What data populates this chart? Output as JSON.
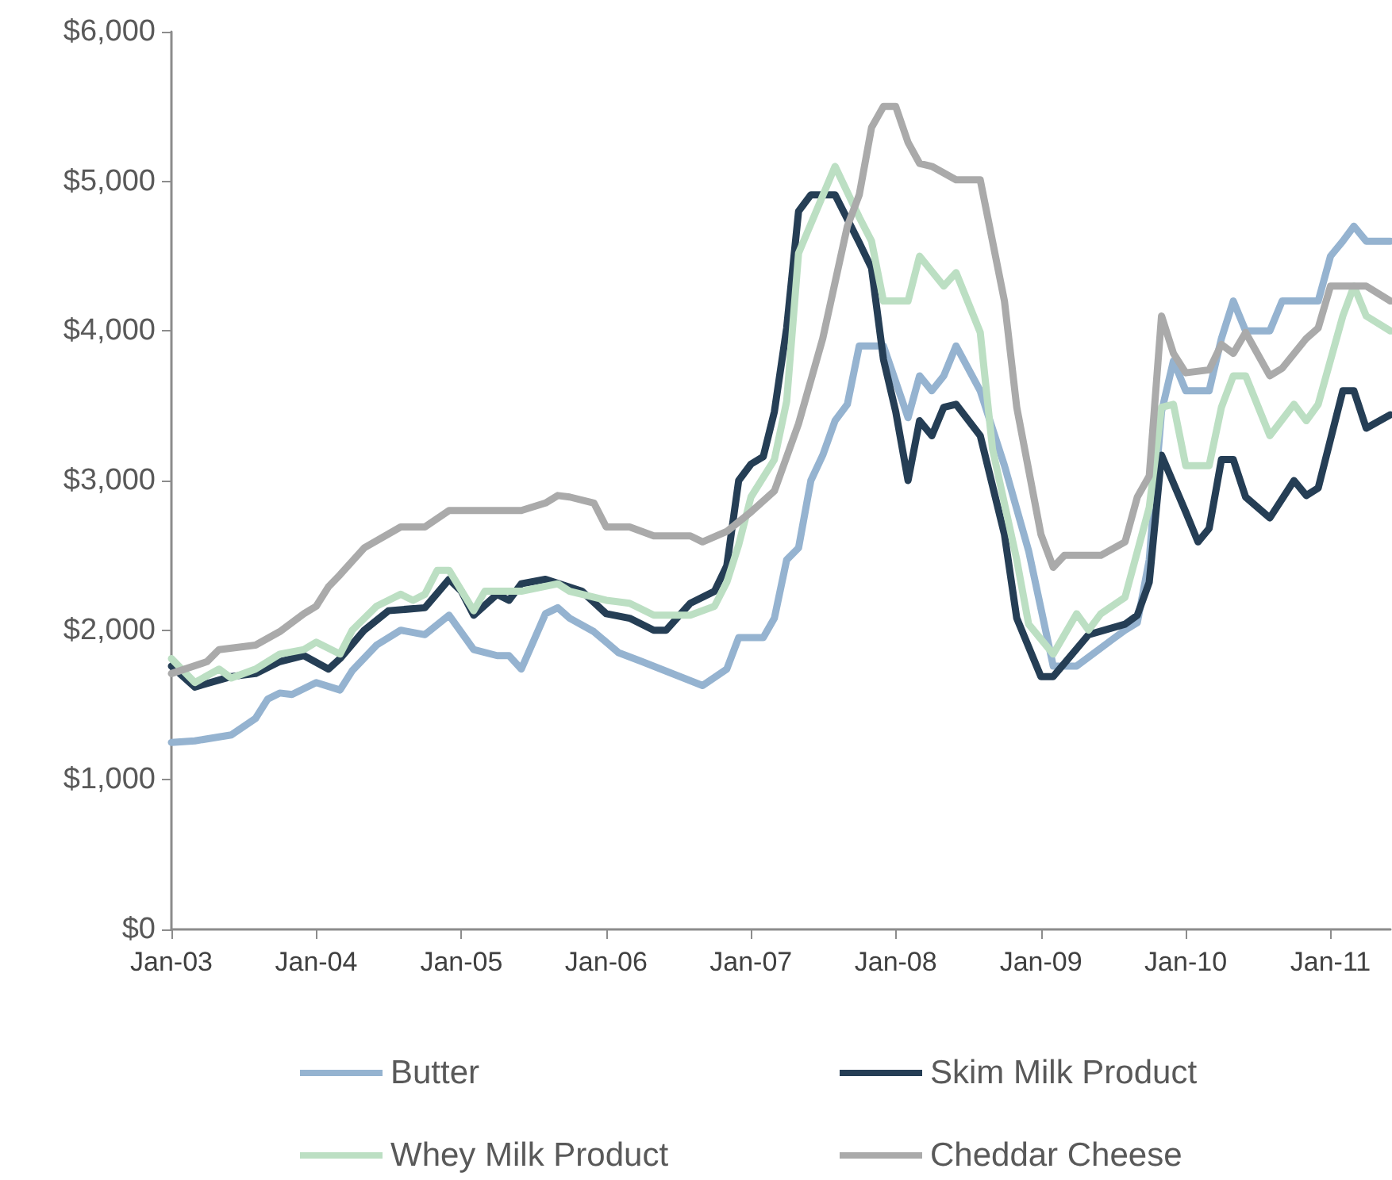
{
  "chart_data": {
    "type": "line",
    "xlim": [
      "2003-01",
      "2011-06"
    ],
    "xticks": [
      {
        "value": "2003-01",
        "label": "Jan-03"
      },
      {
        "value": "2004-01",
        "label": "Jan-04"
      },
      {
        "value": "2005-01",
        "label": "Jan-05"
      },
      {
        "value": "2006-01",
        "label": "Jan-06"
      },
      {
        "value": "2007-01",
        "label": "Jan-07"
      },
      {
        "value": "2008-01",
        "label": "Jan-08"
      },
      {
        "value": "2009-01",
        "label": "Jan-09"
      },
      {
        "value": "2010-01",
        "label": "Jan-10"
      },
      {
        "value": "2011-01",
        "label": "Jan-11"
      }
    ],
    "ylim": [
      0,
      6000
    ],
    "yticks": [
      {
        "value": 0,
        "label": "$0"
      },
      {
        "value": 1000,
        "label": "$1,000"
      },
      {
        "value": 2000,
        "label": "$2,000"
      },
      {
        "value": 3000,
        "label": "$3,000"
      },
      {
        "value": 4000,
        "label": "$4,000"
      },
      {
        "value": 5000,
        "label": "$5,000"
      },
      {
        "value": 6000,
        "label": "$6,000"
      }
    ],
    "grid": false,
    "legend": "bottom",
    "marker": "none",
    "line_style": "solid",
    "series": [
      {
        "name": "Butter",
        "color": "#95b3d0",
        "x": [
          "2003-01",
          "2003-03",
          "2003-06",
          "2003-08",
          "2003-09",
          "2003-10",
          "2003-11",
          "2004-01",
          "2004-03",
          "2004-04",
          "2004-06",
          "2004-08",
          "2004-10",
          "2004-12",
          "2005-02",
          "2005-04",
          "2005-05",
          "2005-06",
          "2005-08",
          "2005-09",
          "2005-10",
          "2005-12",
          "2006-02",
          "2006-04",
          "2006-09",
          "2006-11",
          "2006-12",
          "2007-02",
          "2007-03",
          "2007-04",
          "2007-05",
          "2007-06",
          "2007-07",
          "2007-08",
          "2007-09",
          "2007-10",
          "2007-12",
          "2008-02",
          "2008-03",
          "2008-04",
          "2008-05",
          "2008-06",
          "2008-08",
          "2008-10",
          "2008-12",
          "2009-02",
          "2009-04",
          "2009-07",
          "2009-08",
          "2009-09",
          "2009-10",
          "2009-11",
          "2009-12",
          "2010-01",
          "2010-03",
          "2010-04",
          "2010-05",
          "2010-06",
          "2010-08",
          "2010-09",
          "2010-12",
          "2011-01",
          "2011-02",
          "2011-03",
          "2011-04",
          "2011-06"
        ],
        "values": [
          1250,
          1260,
          1300,
          1410,
          1540,
          1580,
          1570,
          1650,
          1600,
          1730,
          1900,
          2000,
          1970,
          2100,
          1870,
          1830,
          1830,
          1740,
          2110,
          2150,
          2080,
          1990,
          1850,
          1790,
          1630,
          1740,
          1950,
          1950,
          2080,
          2470,
          2550,
          3000,
          3170,
          3400,
          3510,
          3900,
          3900,
          3420,
          3700,
          3600,
          3700,
          3900,
          3600,
          3100,
          2530,
          1760,
          1760,
          1940,
          2000,
          2050,
          2470,
          3460,
          3800,
          3600,
          3600,
          3950,
          4200,
          4000,
          4000,
          4200,
          4200,
          4500,
          4600,
          4700,
          4600,
          4600
        ]
      },
      {
        "name": "Skim Milk Product",
        "color": "#253e55",
        "x": [
          "2003-01",
          "2003-03",
          "2003-06",
          "2003-08",
          "2003-10",
          "2003-12",
          "2004-02",
          "2004-03",
          "2004-05",
          "2004-07",
          "2004-10",
          "2004-12",
          "2005-01",
          "2005-02",
          "2005-04",
          "2005-05",
          "2005-06",
          "2005-08",
          "2005-11",
          "2006-01",
          "2006-03",
          "2006-05",
          "2006-06",
          "2006-08",
          "2006-10",
          "2006-11",
          "2006-12",
          "2007-01",
          "2007-02",
          "2007-03",
          "2007-04",
          "2007-05",
          "2007-06",
          "2007-08",
          "2007-10",
          "2007-11",
          "2007-12",
          "2008-01",
          "2008-02",
          "2008-03",
          "2008-04",
          "2008-05",
          "2008-06",
          "2008-08",
          "2008-10",
          "2008-11",
          "2009-01",
          "2009-02",
          "2009-05",
          "2009-08",
          "2009-09",
          "2009-10",
          "2009-11",
          "2010-01",
          "2010-02",
          "2010-03",
          "2010-04",
          "2010-05",
          "2010-06",
          "2010-08",
          "2010-10",
          "2010-11",
          "2010-12",
          "2011-02",
          "2011-03",
          "2011-04",
          "2011-06"
        ],
        "values": [
          1760,
          1620,
          1690,
          1710,
          1790,
          1830,
          1740,
          1810,
          2000,
          2130,
          2150,
          2340,
          2260,
          2100,
          2240,
          2200,
          2310,
          2340,
          2260,
          2110,
          2080,
          2000,
          2000,
          2180,
          2260,
          2430,
          3000,
          3110,
          3160,
          3460,
          4020,
          4800,
          4910,
          4910,
          4590,
          4420,
          3810,
          3460,
          3000,
          3400,
          3300,
          3490,
          3510,
          3300,
          2640,
          2080,
          1690,
          1690,
          1970,
          2040,
          2100,
          2320,
          3170,
          2790,
          2590,
          2680,
          3140,
          3140,
          2890,
          2750,
          3000,
          2900,
          2950,
          3600,
          3600,
          3350,
          3440
        ]
      },
      {
        "name": "Whey Milk Product",
        "color": "#bcdfc3",
        "x": [
          "2003-01",
          "2003-03",
          "2003-05",
          "2003-06",
          "2003-08",
          "2003-10",
          "2003-12",
          "2004-01",
          "2004-03",
          "2004-04",
          "2004-06",
          "2004-08",
          "2004-09",
          "2004-10",
          "2004-11",
          "2004-12",
          "2005-02",
          "2005-03",
          "2005-05",
          "2005-06",
          "2005-09",
          "2005-10",
          "2006-01",
          "2006-03",
          "2006-05",
          "2006-08",
          "2006-10",
          "2006-11",
          "2006-12",
          "2007-01",
          "2007-03",
          "2007-04",
          "2007-05",
          "2007-08",
          "2007-10",
          "2007-11",
          "2007-12",
          "2008-02",
          "2008-03",
          "2008-05",
          "2008-06",
          "2008-08",
          "2008-09",
          "2008-11",
          "2008-12",
          "2009-02",
          "2009-04",
          "2009-05",
          "2009-06",
          "2009-08",
          "2009-10",
          "2009-11",
          "2009-12",
          "2010-01",
          "2010-03",
          "2010-04",
          "2010-05",
          "2010-06",
          "2010-08",
          "2010-10",
          "2010-11",
          "2010-12",
          "2011-02",
          "2011-03",
          "2011-04",
          "2011-06"
        ],
        "values": [
          1810,
          1650,
          1740,
          1680,
          1740,
          1840,
          1870,
          1920,
          1840,
          2000,
          2160,
          2240,
          2200,
          2240,
          2400,
          2400,
          2130,
          2260,
          2260,
          2260,
          2310,
          2260,
          2200,
          2180,
          2100,
          2100,
          2160,
          2320,
          2570,
          2890,
          3140,
          3530,
          4520,
          5100,
          4760,
          4600,
          4200,
          4200,
          4500,
          4300,
          4390,
          3990,
          3210,
          2470,
          2040,
          1840,
          2110,
          2000,
          2110,
          2220,
          2820,
          3490,
          3510,
          3100,
          3100,
          3490,
          3700,
          3700,
          3300,
          3510,
          3400,
          3510,
          4100,
          4300,
          4100,
          4000
        ]
      },
      {
        "name": "Cheddar Cheese",
        "color": "#aaaaaa",
        "x": [
          "2003-01",
          "2003-04",
          "2003-05",
          "2003-08",
          "2003-10",
          "2003-12",
          "2004-01",
          "2004-02",
          "2004-03",
          "2004-05",
          "2004-08",
          "2004-10",
          "2004-12",
          "2005-06",
          "2005-08",
          "2005-09",
          "2005-10",
          "2005-12",
          "2006-01",
          "2006-03",
          "2006-05",
          "2006-08",
          "2006-09",
          "2006-11",
          "2007-01",
          "2007-03",
          "2007-05",
          "2007-07",
          "2007-09",
          "2007-10",
          "2007-11",
          "2007-12",
          "2008-01",
          "2008-02",
          "2008-03",
          "2008-04",
          "2008-06",
          "2008-08",
          "2008-10",
          "2008-11",
          "2009-01",
          "2009-02",
          "2009-03",
          "2009-06",
          "2009-08",
          "2009-09",
          "2009-10",
          "2009-11",
          "2009-12",
          "2010-01",
          "2010-03",
          "2010-04",
          "2010-05",
          "2010-06",
          "2010-08",
          "2010-09",
          "2010-11",
          "2010-12",
          "2011-01",
          "2011-04",
          "2011-06"
        ],
        "values": [
          1710,
          1790,
          1870,
          1900,
          1990,
          2110,
          2160,
          2290,
          2370,
          2550,
          2690,
          2690,
          2800,
          2800,
          2850,
          2900,
          2890,
          2850,
          2690,
          2690,
          2630,
          2630,
          2590,
          2660,
          2790,
          2930,
          3380,
          3950,
          4700,
          4910,
          5360,
          5500,
          5500,
          5260,
          5120,
          5100,
          5010,
          5010,
          4200,
          3490,
          2640,
          2420,
          2500,
          2500,
          2590,
          2890,
          3030,
          4100,
          3850,
          3720,
          3740,
          3910,
          3850,
          3990,
          3700,
          3750,
          3950,
          4020,
          4300,
          4300,
          4200
        ]
      }
    ]
  }
}
